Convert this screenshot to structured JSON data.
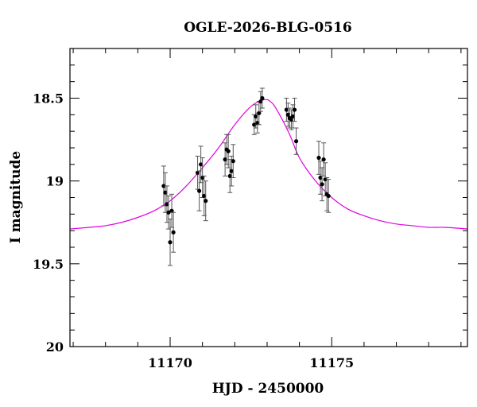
{
  "chart_data": {
    "type": "scatter",
    "title": "OGLE-2026-BLG-0516",
    "xlabel": "HJD - 2450000",
    "ylabel": "I magnitude",
    "xlim": [
      11166.9,
      11179.2
    ],
    "ylim": [
      20.0,
      18.2
    ],
    "y_inverted": true,
    "x_ticks": [
      11170,
      11175
    ],
    "y_ticks": [
      18.5,
      19,
      19.5,
      20
    ],
    "x_tick_labels": [
      "11170",
      "11175"
    ],
    "y_tick_labels": [
      "18.5",
      "19",
      "19.5",
      "20"
    ],
    "grid": false,
    "colors": {
      "model": "#e000e0",
      "points": "#000000",
      "errorbars": "#555555"
    },
    "model_curve": {
      "name": "",
      "x": [
        11166.9,
        11167.5,
        11168.0,
        11168.5,
        11169.0,
        11169.5,
        11170.0,
        11170.5,
        11171.0,
        11171.5,
        11172.0,
        11172.5,
        11172.9,
        11173.1,
        11173.3,
        11173.7,
        11174.0,
        11174.5,
        11175.0,
        11175.5,
        11176.0,
        11176.5,
        11177.0,
        11177.5,
        11178.0,
        11178.5,
        11179.2
      ],
      "y": [
        19.29,
        19.28,
        19.27,
        19.25,
        19.22,
        19.18,
        19.12,
        19.03,
        18.92,
        18.8,
        18.66,
        18.55,
        18.51,
        18.52,
        18.57,
        18.72,
        18.86,
        19.0,
        19.1,
        19.17,
        19.21,
        19.24,
        19.26,
        19.27,
        19.28,
        19.28,
        19.29
      ]
    },
    "points": [
      {
        "x": 11169.8,
        "y": 19.03,
        "err": 0.12
      },
      {
        "x": 11169.85,
        "y": 19.07,
        "err": 0.12
      },
      {
        "x": 11169.9,
        "y": 19.14,
        "err": 0.11
      },
      {
        "x": 11169.95,
        "y": 19.19,
        "err": 0.1
      },
      {
        "x": 11170.0,
        "y": 19.37,
        "err": 0.14
      },
      {
        "x": 11170.05,
        "y": 19.18,
        "err": 0.1
      },
      {
        "x": 11170.1,
        "y": 19.31,
        "err": 0.12
      },
      {
        "x": 11170.85,
        "y": 18.95,
        "err": 0.1
      },
      {
        "x": 11170.9,
        "y": 19.06,
        "err": 0.12
      },
      {
        "x": 11170.95,
        "y": 18.9,
        "err": 0.11
      },
      {
        "x": 11171.0,
        "y": 18.98,
        "err": 0.12
      },
      {
        "x": 11171.05,
        "y": 19.09,
        "err": 0.12
      },
      {
        "x": 11171.1,
        "y": 19.12,
        "err": 0.12
      },
      {
        "x": 11171.7,
        "y": 18.87,
        "err": 0.1
      },
      {
        "x": 11171.75,
        "y": 18.81,
        "err": 0.09
      },
      {
        "x": 11171.8,
        "y": 18.82,
        "err": 0.1
      },
      {
        "x": 11171.85,
        "y": 18.97,
        "err": 0.1
      },
      {
        "x": 11171.9,
        "y": 18.94,
        "err": 0.09
      },
      {
        "x": 11171.95,
        "y": 18.88,
        "err": 0.1
      },
      {
        "x": 11172.6,
        "y": 18.66,
        "err": 0.06
      },
      {
        "x": 11172.65,
        "y": 18.61,
        "err": 0.07
      },
      {
        "x": 11172.7,
        "y": 18.65,
        "err": 0.06
      },
      {
        "x": 11172.75,
        "y": 18.59,
        "err": 0.07
      },
      {
        "x": 11172.8,
        "y": 18.52,
        "err": 0.06
      },
      {
        "x": 11172.85,
        "y": 18.5,
        "err": 0.06
      },
      {
        "x": 11173.6,
        "y": 18.57,
        "err": 0.07
      },
      {
        "x": 11173.65,
        "y": 18.6,
        "err": 0.07
      },
      {
        "x": 11173.7,
        "y": 18.62,
        "err": 0.06
      },
      {
        "x": 11173.75,
        "y": 18.63,
        "err": 0.06
      },
      {
        "x": 11173.8,
        "y": 18.61,
        "err": 0.07
      },
      {
        "x": 11173.85,
        "y": 18.57,
        "err": 0.07
      },
      {
        "x": 11173.9,
        "y": 18.76,
        "err": 0.08
      },
      {
        "x": 11174.6,
        "y": 18.86,
        "err": 0.1
      },
      {
        "x": 11174.65,
        "y": 18.98,
        "err": 0.1
      },
      {
        "x": 11174.7,
        "y": 19.02,
        "err": 0.1
      },
      {
        "x": 11174.75,
        "y": 18.87,
        "err": 0.1
      },
      {
        "x": 11174.8,
        "y": 18.99,
        "err": 0.1
      },
      {
        "x": 11174.85,
        "y": 19.08,
        "err": 0.1
      },
      {
        "x": 11174.9,
        "y": 19.09,
        "err": 0.1
      }
    ]
  }
}
